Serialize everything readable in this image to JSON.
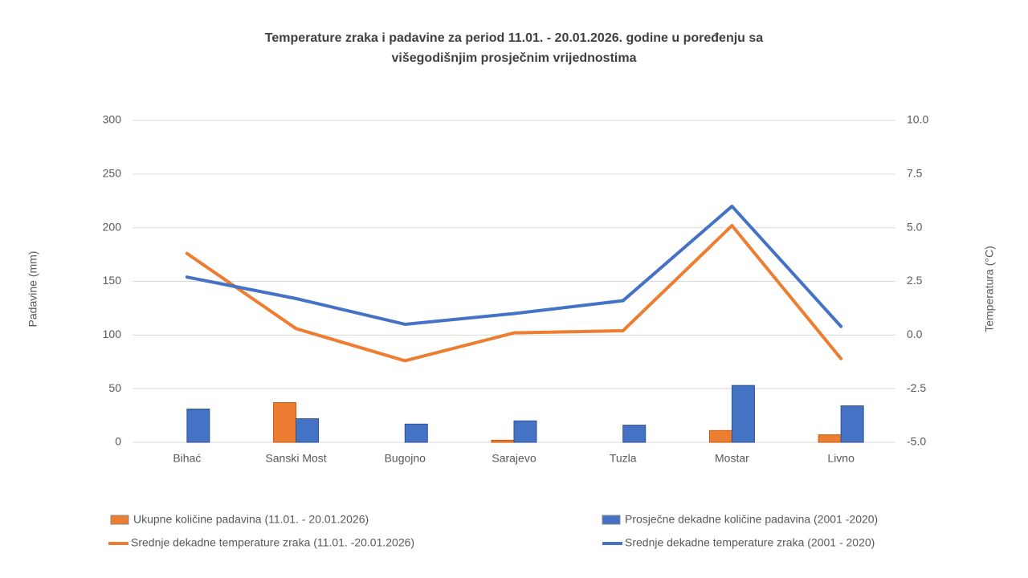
{
  "chart_data": {
    "type": "combo",
    "title": "Temperature zraka i padavine za period 11.01. - 20.01.2026. godine u poređenju sa višegodišnjim prosječnim vrijednostima",
    "y_label": "Padavine (mm)",
    "y2_label": "Temperatura (°C)",
    "categories": [
      "Bihać",
      "Sanski Most",
      "Bugojno",
      "Sarajevo",
      "Tuzla",
      "Mostar",
      "Livno"
    ],
    "ylim": [
      0,
      300
    ],
    "yticks": [
      0,
      50,
      100,
      150,
      200,
      250,
      300
    ],
    "y2lim": [
      -5,
      10
    ],
    "y2ticks": [
      {
        "value": -5,
        "label": "-5.0"
      },
      -2.5,
      {
        "value": 0,
        "label": "0.0"
      },
      2.5,
      {
        "value": 5,
        "label": "5.0"
      },
      7.5,
      {
        "value": 10,
        "label": "10.0"
      }
    ],
    "grid": true,
    "series": [
      {
        "name": "Ukupne količine padavina (11.01. - 20.01.2026)",
        "type": "bar",
        "color": "#ed7d31",
        "values": [
          0,
          37,
          0,
          2,
          0,
          11,
          7
        ]
      },
      {
        "name": "Prosječne dekadne količine padavina (2001 -2020)",
        "type": "bar",
        "color": "#4472c4",
        "values": [
          31,
          22,
          17,
          20,
          16,
          53,
          34
        ]
      },
      {
        "name": "Srednje dekadne temperature zraka (11.01. -20.01.2026)",
        "type": "line",
        "axis": "y2",
        "color": "#ed7d31",
        "values": [
          3.8,
          0.3,
          -1.2,
          0.1,
          0.2,
          5.1,
          -1.1
        ]
      },
      {
        "name": "Srednje dekadne temperature zraka (2001 - 2020)",
        "type": "line",
        "axis": "y2",
        "color": "#4472c4",
        "values": [
          2.7,
          1.7,
          0.5,
          1.0,
          1.6,
          6.0,
          0.4
        ]
      }
    ]
  }
}
